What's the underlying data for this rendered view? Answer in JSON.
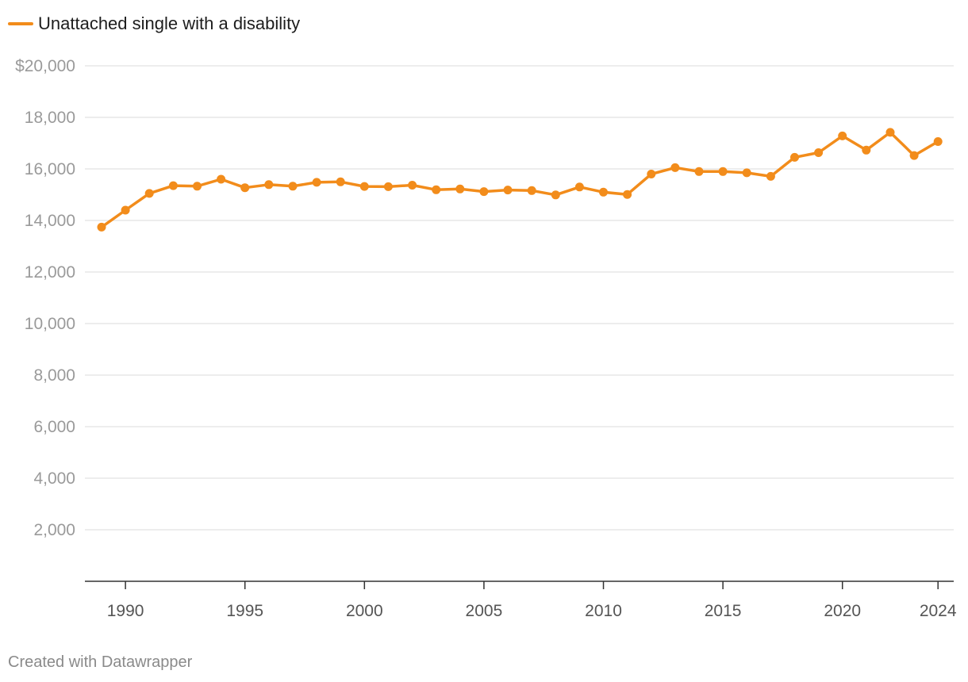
{
  "chart_data": {
    "type": "line",
    "title": "",
    "xlabel": "",
    "ylabel": "",
    "legend_position": "top-left",
    "ylim": [
      0,
      20000
    ],
    "xlim": [
      1989,
      2024
    ],
    "y_ticks": [
      {
        "value": 20000,
        "label": "$20,000"
      },
      {
        "value": 18000,
        "label": "18,000"
      },
      {
        "value": 16000,
        "label": "16,000"
      },
      {
        "value": 14000,
        "label": "14,000"
      },
      {
        "value": 12000,
        "label": "12,000"
      },
      {
        "value": 10000,
        "label": "10,000"
      },
      {
        "value": 8000,
        "label": "8,000"
      },
      {
        "value": 6000,
        "label": "6,000"
      },
      {
        "value": 4000,
        "label": "4,000"
      },
      {
        "value": 2000,
        "label": "2,000"
      }
    ],
    "x_ticks": [
      {
        "value": 1990,
        "label": "1990"
      },
      {
        "value": 1995,
        "label": "1995"
      },
      {
        "value": 2000,
        "label": "2000"
      },
      {
        "value": 2005,
        "label": "2005"
      },
      {
        "value": 2010,
        "label": "2010"
      },
      {
        "value": 2015,
        "label": "2015"
      },
      {
        "value": 2020,
        "label": "2020"
      },
      {
        "value": 2024,
        "label": "2024"
      }
    ],
    "series": [
      {
        "name": "Unattached single with a disability",
        "color": "#f28c1b",
        "x": [
          1989,
          1990,
          1991,
          1992,
          1993,
          1994,
          1995,
          1996,
          1997,
          1998,
          1999,
          2000,
          2001,
          2002,
          2003,
          2004,
          2005,
          2006,
          2007,
          2008,
          2009,
          2010,
          2011,
          2012,
          2013,
          2014,
          2015,
          2016,
          2017,
          2018,
          2019,
          2020,
          2021,
          2022,
          2023,
          2024
        ],
        "values": [
          13740,
          14400,
          15050,
          15350,
          15330,
          15600,
          15270,
          15390,
          15330,
          15480,
          15500,
          15320,
          15310,
          15370,
          15190,
          15220,
          15120,
          15180,
          15160,
          14990,
          15300,
          15100,
          15010,
          15800,
          16050,
          15900,
          15900,
          15850,
          15710,
          16450,
          16630,
          17280,
          16730,
          17420,
          16520,
          17060
        ]
      }
    ]
  },
  "footer": {
    "credit": "Created with Datawrapper"
  }
}
